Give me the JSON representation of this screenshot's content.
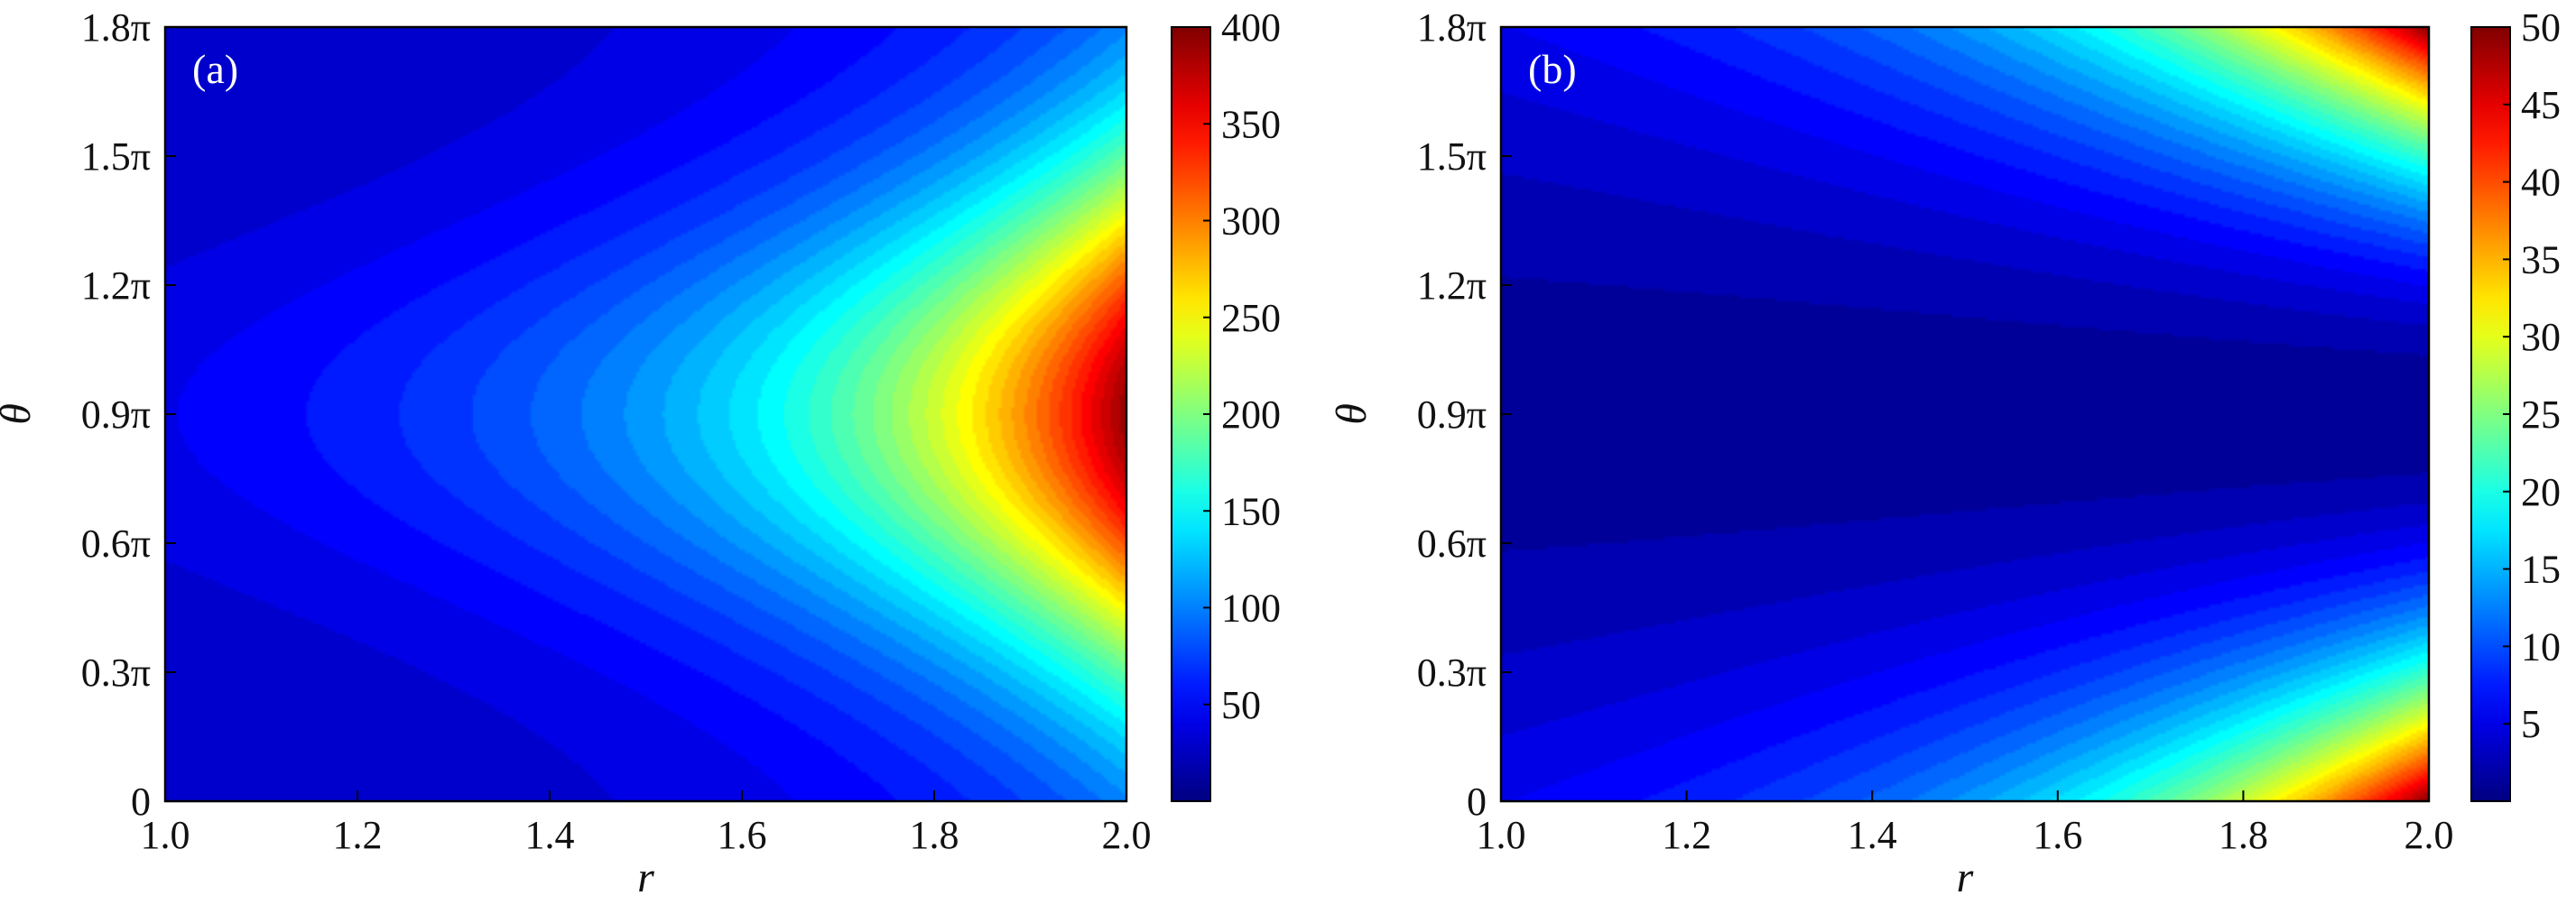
{
  "chart_data": [
    {
      "type": "heatmap",
      "panel_label": "(a)",
      "xlabel": "r",
      "ylabel": "θ",
      "xlim": [
        1.0,
        2.0
      ],
      "ylim_pi": [
        0,
        1.8
      ],
      "x_ticks": [
        "1.0",
        "1.2",
        "1.4",
        "1.6",
        "1.8",
        "2.0"
      ],
      "x_tick_values": [
        1.0,
        1.2,
        1.4,
        1.6,
        1.8,
        2.0
      ],
      "y_ticks": [
        "0",
        "0.3π",
        "0.6π",
        "0.9π",
        "1.2π",
        "1.5π",
        "1.8π"
      ],
      "y_tick_values_pi": [
        0,
        0.3,
        0.6,
        0.9,
        1.2,
        1.5,
        1.8
      ],
      "colorbar": {
        "min": 0,
        "max": 400,
        "ticks": [
          "50",
          "100",
          "150",
          "200",
          "250",
          "300",
          "350",
          "400"
        ],
        "tick_values": [
          50,
          100,
          150,
          200,
          250,
          300,
          350,
          400
        ]
      },
      "colormap": "jet",
      "field": {
        "peak_value": 400,
        "peak_r": 2.0,
        "peak_theta_pi": 0.9,
        "pattern": "single maximum at r = 2.0, θ = 0.9π, decreasing toward r = 1.0 and toward θ = 0 and θ = 1.8π"
      }
    },
    {
      "type": "heatmap",
      "panel_label": "(b)",
      "xlabel": "r",
      "ylabel": "θ",
      "xlim": [
        1.0,
        2.0
      ],
      "ylim_pi": [
        0,
        1.8
      ],
      "x_ticks": [
        "1.0",
        "1.2",
        "1.4",
        "1.6",
        "1.8",
        "2.0"
      ],
      "x_tick_values": [
        1.0,
        1.2,
        1.4,
        1.6,
        1.8,
        2.0
      ],
      "y_ticks": [
        "0",
        "0.3π",
        "0.6π",
        "0.9π",
        "1.2π",
        "1.5π",
        "1.8π"
      ],
      "y_tick_values_pi": [
        0,
        0.3,
        0.6,
        0.9,
        1.2,
        1.5,
        1.8
      ],
      "colorbar": {
        "min": 0,
        "max": 50,
        "ticks": [
          "5",
          "10",
          "15",
          "20",
          "25",
          "30",
          "35",
          "40",
          "45",
          "50"
        ],
        "tick_values": [
          5,
          10,
          15,
          20,
          25,
          30,
          35,
          40,
          45,
          50
        ]
      },
      "colormap": "jet",
      "field": {
        "peak_value": 50,
        "peak_r": 2.0,
        "peak_theta_pi": [
          0,
          1.8
        ],
        "min_theta_pi": 0.9,
        "pattern": "maxima at r = 2.0 near θ = 0 and θ = 1.8π, minimum band at θ = 0.9π"
      }
    }
  ]
}
